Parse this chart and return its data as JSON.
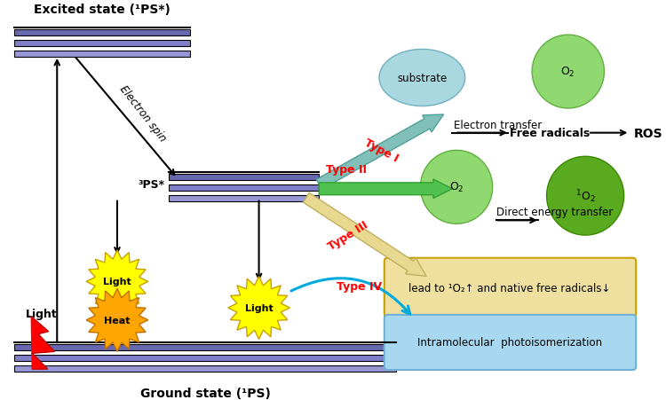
{
  "bg_color": "#ffffff",
  "excited_state_label": "Excited state (¹PS*)",
  "ground_state_label": "Ground state (¹PS)",
  "triplet_label": "³PS*",
  "electron_spin_label": "Electron spin",
  "bar_colors": [
    "#6868b0",
    "#8080c8",
    "#9898d8",
    "#b0b0e0"
  ],
  "type1_label": "Type I",
  "type2_label": "Type II",
  "type3_label": "Type III",
  "type4_label": "Type IV",
  "substrate_color": "#aad8e0",
  "o2_light_color": "#90d870",
  "o2_dark_color": "#5aaa20",
  "free_radicals_label": "Free radicals",
  "ros_label": "ROS",
  "electron_transfer_label": "Electron transfer",
  "direct_energy_label": "Direct energy transfer",
  "type3_box_label": "lead to ¹O₂↑ and native free radicals↓",
  "type4_box_label": "Intramolecular  photoisomerization",
  "type3_box_color": "#f0e0a0",
  "type4_box_color": "#a8d8f0",
  "light_label": "Light",
  "heat_label": "Heat"
}
